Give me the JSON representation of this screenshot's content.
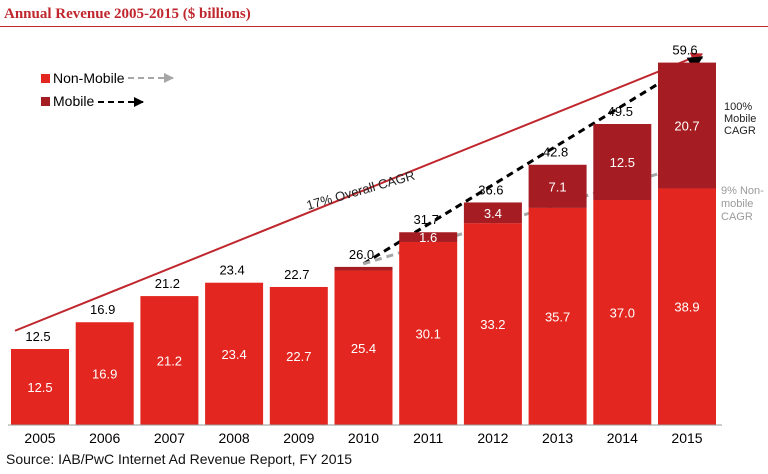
{
  "title": "Annual Revenue 2005-2015 ($ billions)",
  "source": "Source: IAB/PwC Internet Ad Revenue Report, FY 2015",
  "colors": {
    "title": "#c0262d",
    "non_mobile": "#e3261f",
    "mobile": "#a51d22",
    "mobile_arrow": "#000000",
    "non_mobile_arrow": "#a6a6a6",
    "overall_arrow": "#c0262d",
    "bar_label_inside": "#ffffff",
    "bar_label_total": "#000000"
  },
  "chart_data": {
    "type": "bar",
    "stacked": true,
    "title": "Annual Revenue 2005-2015 ($ billions)",
    "xlabel": "",
    "ylabel": "",
    "ylim": [
      0,
      62
    ],
    "categories": [
      "2005",
      "2006",
      "2007",
      "2008",
      "2009",
      "2010",
      "2011",
      "2012",
      "2013",
      "2014",
      "2015"
    ],
    "series": [
      {
        "name": "Non-Mobile",
        "values": [
          12.5,
          16.9,
          21.2,
          23.4,
          22.7,
          25.4,
          30.1,
          33.2,
          35.7,
          37.0,
          38.9
        ]
      },
      {
        "name": "Mobile",
        "values": [
          0,
          0,
          0,
          0,
          0,
          0.6,
          1.6,
          3.4,
          7.1,
          12.5,
          20.7
        ]
      }
    ],
    "totals": [
      12.5,
      16.9,
      21.2,
      23.4,
      22.7,
      26.0,
      31.7,
      36.6,
      42.8,
      49.5,
      59.6
    ],
    "non_mobile_labels": [
      "12.5",
      "16.9",
      "21.2",
      "23.4",
      "22.7",
      "25.4",
      "30.1",
      "33.2",
      "35.7",
      "37.0",
      "38.9"
    ],
    "mobile_labels": [
      "",
      "",
      "",
      "",
      "",
      "",
      "1.6",
      "3.4",
      "7.1",
      "12.5",
      "20.7"
    ],
    "total_labels": [
      "12.5",
      "16.9",
      "21.2",
      "23.4",
      "22.7",
      "26.0",
      "31.7",
      "36.6",
      "42.8",
      "49.5",
      "59.6"
    ],
    "legend": {
      "position": "top-left",
      "entries": [
        {
          "name": "Non-Mobile",
          "arrow": "dashed-gray"
        },
        {
          "name": "Mobile",
          "arrow": "dashed-black"
        }
      ]
    },
    "annotations": {
      "overall": "17% Overall CAGR",
      "mobile": [
        "100%",
        "Mobile",
        "CAGR"
      ],
      "non_mobile": [
        "9% Non-",
        "mobile",
        "CAGR"
      ]
    },
    "trend_lines": {
      "overall": {
        "from": {
          "category": "2005",
          "value": 15.5
        },
        "to": {
          "category": "2015",
          "value": 61.0
        }
      },
      "mobile": {
        "from": {
          "category": "2010",
          "value": 26.5
        },
        "to": {
          "category": "2015",
          "value": 60.5
        }
      },
      "non_mobile": {
        "from": {
          "category": "2010",
          "value": 26.5
        },
        "to": {
          "category": "2015",
          "value": 43.5
        }
      }
    },
    "grid": false
  }
}
